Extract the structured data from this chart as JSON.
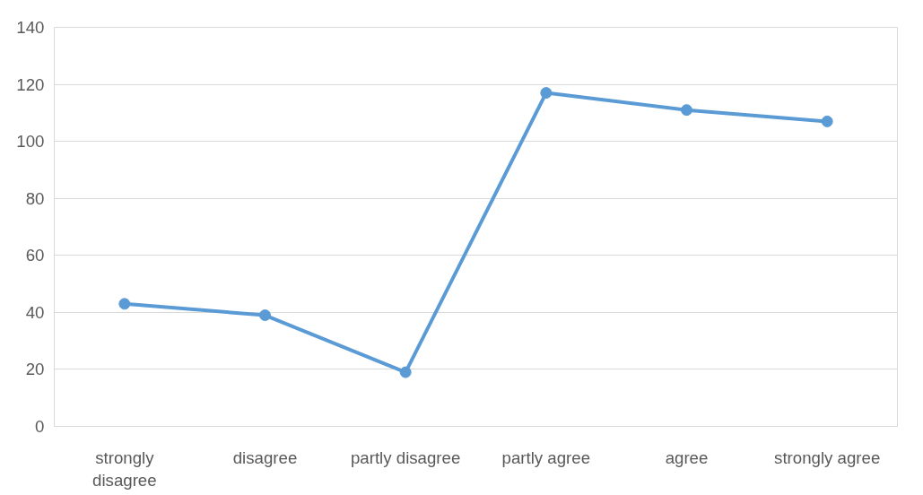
{
  "chart_data": {
    "type": "line",
    "categories": [
      "strongly disagree",
      "disagree",
      "partly disagree",
      "partly agree",
      "agree",
      "strongly agree"
    ],
    "series": [
      {
        "color": "#5b9bd5",
        "values": [
          43,
          39,
          19,
          117,
          111,
          107
        ]
      }
    ],
    "ylim": [
      0,
      140
    ],
    "yticks": [
      0,
      20,
      40,
      60,
      80,
      100,
      120,
      140
    ],
    "grid": "y",
    "marker": "circle",
    "line_style": "solid"
  }
}
